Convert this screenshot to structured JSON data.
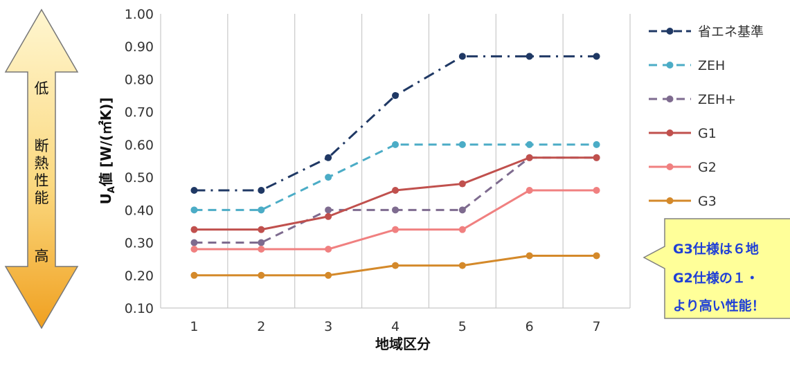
{
  "chart_data": {
    "type": "line",
    "xlabel": "地域区分",
    "ylabel_main": "U",
    "ylabel_sub": "A",
    "ylabel_rest": "値 [W/(㎡K)]",
    "x": [
      "1",
      "2",
      "3",
      "4",
      "5",
      "6",
      "7"
    ],
    "ylim": [
      0.1,
      1.0
    ],
    "yticks": [
      "0.10",
      "0.20",
      "0.30",
      "0.40",
      "0.50",
      "0.60",
      "0.70",
      "0.80",
      "0.90",
      "1.00"
    ],
    "grid": "vertical",
    "legend_position": "right",
    "series": [
      {
        "name": "省エネ基準",
        "color": "#1f3864",
        "dash": "dashdot",
        "values": [
          0.46,
          0.46,
          0.56,
          0.75,
          0.87,
          0.87,
          0.87
        ]
      },
      {
        "name": "ZEH",
        "color": "#4bacc6",
        "dash": "dash",
        "values": [
          0.4,
          0.4,
          0.5,
          0.6,
          0.6,
          0.6,
          0.6
        ]
      },
      {
        "name": "ZEH+",
        "color": "#7e6b8f",
        "dash": "dash",
        "values": [
          0.3,
          0.3,
          0.4,
          0.4,
          0.4,
          0.56,
          0.56
        ]
      },
      {
        "name": "G1",
        "color": "#c0504d",
        "dash": "solid",
        "values": [
          0.34,
          0.34,
          0.38,
          0.46,
          0.48,
          0.56,
          0.56
        ]
      },
      {
        "name": "G2",
        "color": "#f08080",
        "dash": "solid",
        "values": [
          0.28,
          0.28,
          0.28,
          0.34,
          0.34,
          0.46,
          0.46
        ]
      },
      {
        "name": "G3",
        "color": "#d4892a",
        "dash": "solid",
        "values": [
          0.2,
          0.2,
          0.2,
          0.23,
          0.23,
          0.26,
          0.26
        ]
      }
    ]
  },
  "side_arrow": {
    "top_label": "低",
    "middle_label": [
      "断",
      "熱",
      "性",
      "能"
    ],
    "bottom_label": "高"
  },
  "callout": {
    "lines": [
      "G3仕様は６地",
      "G2仕様の１・",
      "より高い性能！"
    ]
  },
  "colors": {
    "grid": "#c8c8c8",
    "arrow_top": "#fff2c2",
    "arrow_bottom": "#f0a020",
    "callout_fill": "#ffff99",
    "callout_text": "#1f3fd6"
  }
}
